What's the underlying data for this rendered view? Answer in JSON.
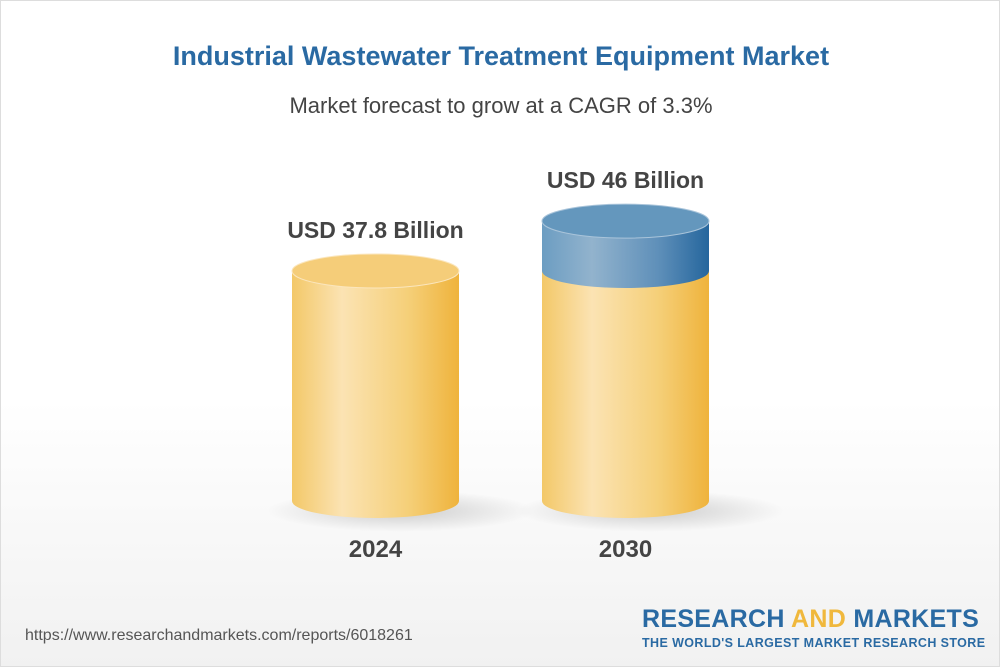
{
  "title": "Industrial Wastewater Treatment Equipment Market",
  "subtitle": "Market forecast to grow at a CAGR of 3.3%",
  "chart_data": {
    "type": "bar",
    "style": "3d-cylinder",
    "categories": [
      "2024",
      "2030"
    ],
    "values": [
      37.8,
      46
    ],
    "data_labels": [
      "USD 37.8 Billion",
      "USD 46 Billion"
    ],
    "unit": "USD Billion",
    "cagr": "3.3%",
    "colors": {
      "base": "#f2bc48",
      "growth": "#2a6aa3"
    },
    "grid": false
  },
  "footer": {
    "url": "https://www.researchandmarkets.com/reports/6018261",
    "logo_part1": "RESEARCH ",
    "logo_part2": "AND",
    "logo_part3": " MARKETS",
    "tagline": "THE WORLD'S LARGEST MARKET RESEARCH STORE"
  }
}
